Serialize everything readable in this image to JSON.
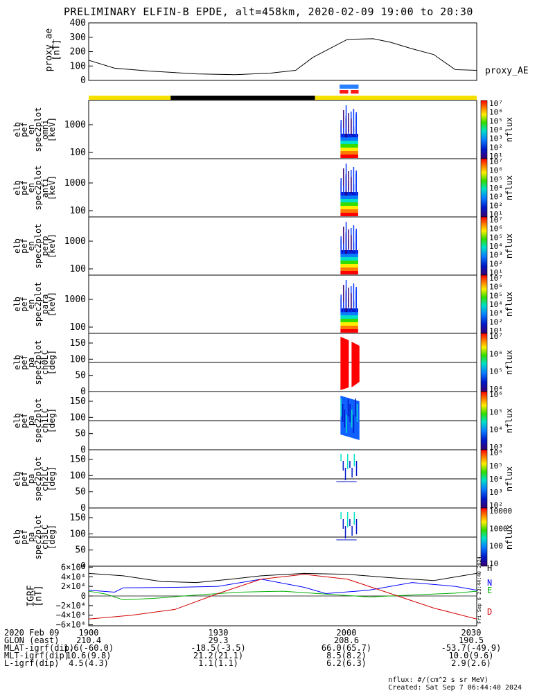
{
  "title": "PRELIMINARY ELFIN-B EPDE, alt=458km, 2020-02-09 19:00 to 20:30",
  "colors": {
    "sun": "#f5e000",
    "shadow": "#000000",
    "blue_bar": "#2a7fff",
    "red_bar": "#ff1a1a",
    "grid": "#000000",
    "trace_H": "#000000",
    "trace_N": "#0000ff",
    "trace_E": "#00b000",
    "trace_D": "#d00000"
  },
  "panels": {
    "proxy": {
      "ylabel": "proxy_ae\n[nT]",
      "trace_label": "proxy_AE",
      "yticks": [
        "400",
        "300",
        "200",
        "100",
        "0"
      ]
    },
    "spec": [
      {
        "ylabel": "elb\npef\nen\nspec2plot\nomni\n[keV]",
        "yticks": [
          "1000",
          "100"
        ],
        "cb_unit": "nflux",
        "cb_ticks": [
          "10⁷",
          "10⁶",
          "10⁵",
          "10⁴",
          "10³",
          "10²",
          "10¹"
        ]
      },
      {
        "ylabel": "elb\npef\nen\nspec2plot\nanti\n[keV]",
        "yticks": [
          "1000",
          "100"
        ],
        "cb_unit": "nflux",
        "cb_ticks": [
          "10⁷",
          "10⁶",
          "10⁵",
          "10⁴",
          "10³",
          "10²",
          "10¹"
        ]
      },
      {
        "ylabel": "elb\npef\nen\nspec2plot\nperp\n[keV]",
        "yticks": [
          "1000",
          "100"
        ],
        "cb_unit": "nflux",
        "cb_ticks": [
          "10⁷",
          "10⁶",
          "10⁵",
          "10⁴",
          "10³",
          "10²",
          "10¹"
        ]
      },
      {
        "ylabel": "elb\npef\nen\nspec2plot\npara\n[keV]",
        "yticks": [
          "1000",
          "100"
        ],
        "cb_unit": "nflux",
        "cb_ticks": [
          "10⁷",
          "10⁶",
          "10⁵",
          "10⁴",
          "10³",
          "10²",
          "10¹"
        ]
      }
    ],
    "pa": [
      {
        "ylabel": "elb\npef\npa\nspec2plot\nch0LC\n[deg]",
        "yticks": [
          "150",
          "100",
          "50",
          "0"
        ],
        "cb_unit": "nflux",
        "cb_ticks": [
          "10⁷",
          "10⁶",
          "10⁵",
          "10⁴"
        ]
      },
      {
        "ylabel": "elb\npef\npa\nspec2plot\nch1LC\n[deg]",
        "yticks": [
          "150",
          "100",
          "50",
          "0"
        ],
        "cb_unit": "nflux",
        "cb_ticks": [
          "10⁶",
          "10⁵",
          "10⁴",
          "10³"
        ]
      },
      {
        "ylabel": "elb\npef\npa\nspec2plot\nch2LC\n[deg]",
        "yticks": [
          "150",
          "100",
          "50",
          "0"
        ],
        "cb_unit": "nflux",
        "cb_ticks": [
          "10⁶",
          "10⁵",
          "10⁴",
          "10³",
          "10²"
        ]
      },
      {
        "ylabel": "elb\npef\npa\nspec2plot\nch3LC\n[deg]",
        "yticks": [
          "150",
          "100",
          "50",
          "0"
        ],
        "cb_unit": "nflux",
        "cb_ticks": [
          "10000",
          "1000",
          "100",
          "10"
        ]
      }
    ],
    "igrf": {
      "ylabel": "IGRF\n[nT]",
      "yticks": [
        "6×10⁴",
        "4×10⁴",
        "2×10⁴",
        "0",
        "−2×10⁴",
        "−4×10⁴",
        "−6×10⁴"
      ],
      "legend": [
        "H",
        "N",
        "E",
        "D"
      ],
      "stamp": "Fri Sep  6 23:44:40 2024"
    }
  },
  "chart_data": {
    "type": "line",
    "title": "PRELIMINARY ELFIN-B EPDE, alt=458km, 2020-02-09 19:00 to 20:30",
    "x_range_minutes": [
      0,
      90
    ],
    "xtick_labels": [
      "1900",
      "1930",
      "2000",
      "2030"
    ],
    "series": [
      {
        "name": "proxy_AE",
        "units": "nT",
        "ylim": [
          0,
          400
        ],
        "x": [
          0,
          6,
          14,
          25,
          34,
          42,
          48,
          52,
          60,
          66,
          70,
          75,
          80,
          85,
          90
        ],
        "y": [
          140,
          85,
          65,
          45,
          40,
          50,
          70,
          160,
          285,
          290,
          265,
          220,
          180,
          75,
          70
        ]
      },
      {
        "name": "H",
        "ylim": [
          -60000,
          60000
        ],
        "x": [
          0,
          8,
          17,
          25,
          33,
          40,
          50,
          60,
          70,
          80,
          90
        ],
        "y": [
          47000,
          42000,
          30000,
          28000,
          35000,
          42000,
          47000,
          45000,
          38000,
          32000,
          47000
        ]
      },
      {
        "name": "N",
        "ylim": [
          -60000,
          60000
        ],
        "x": [
          0,
          6,
          8,
          20,
          30,
          40,
          50,
          55,
          65,
          75,
          85,
          90
        ],
        "y": [
          12000,
          8000,
          17000,
          18000,
          20000,
          35000,
          18000,
          5000,
          12000,
          28000,
          20000,
          12000
        ]
      },
      {
        "name": "E",
        "ylim": [
          -60000,
          60000
        ],
        "x": [
          0,
          4,
          8,
          15,
          25,
          35,
          45,
          55,
          65,
          75,
          85,
          90
        ],
        "y": [
          10000,
          4000,
          -8000,
          -5000,
          2000,
          8000,
          10000,
          4000,
          -2000,
          2000,
          6000,
          10000
        ]
      },
      {
        "name": "D",
        "ylim": [
          -60000,
          60000
        ],
        "x": [
          0,
          10,
          20,
          30,
          40,
          50,
          60,
          70,
          80,
          90
        ],
        "y": [
          -48000,
          -40000,
          -28000,
          5000,
          35000,
          45000,
          35000,
          5000,
          -25000,
          -48000
        ]
      }
    ]
  },
  "footer": {
    "rows": [
      {
        "label": "2020 Feb 09",
        "values": [
          "1900",
          "1930",
          "2000",
          "2030"
        ]
      },
      {
        "label": "GLON (east)",
        "values": [
          "210.4",
          "29.3",
          "208.6",
          "190.5"
        ]
      },
      {
        "label": "MLAT-igrf(dip)",
        "values": [
          "1.6(-60.0)",
          "-18.5(-3.5)",
          "66.0(65.7)",
          "-53.7(-49.9)"
        ]
      },
      {
        "label": "MLT-igrf(dip)",
        "values": [
          "10.6(9.8)",
          "21.2(21.1)",
          "8.5(8.2)",
          "10.0(9.6)"
        ]
      },
      {
        "label": "L-igrf(dip)",
        "values": [
          "4.5(4.3)",
          "1.1(1.1)",
          "6.2(6.3)",
          "2.9(2.6)"
        ]
      }
    ],
    "nflux_units": "nflux: #/(cm^2 s sr MeV)",
    "created": "Created: Sat Sep  7 06:44:40 2024"
  }
}
